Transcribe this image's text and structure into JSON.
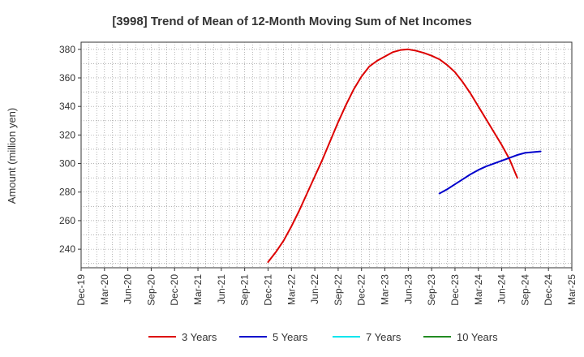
{
  "chart_data": {
    "type": "line",
    "title": "[3998]  Trend of Mean of 12-Month Moving Sum of Net Incomes",
    "ylabel": "Amount (million yen)",
    "xlabel": "",
    "x_ticks": [
      "Dec-19",
      "Mar-20",
      "Jun-20",
      "Sep-20",
      "Dec-20",
      "Mar-21",
      "Jun-21",
      "Sep-21",
      "Dec-21",
      "Mar-22",
      "Jun-22",
      "Sep-22",
      "Dec-22",
      "Mar-23",
      "Jun-23",
      "Sep-23",
      "Dec-23",
      "Mar-24",
      "Jun-24",
      "Sep-24",
      "Dec-24",
      "Mar-25"
    ],
    "y_ticks": [
      240,
      260,
      280,
      300,
      320,
      340,
      360,
      380
    ],
    "ylim": [
      227,
      385
    ],
    "grid": true,
    "legend_position": "bottom",
    "series": [
      {
        "name": "3 Years",
        "color": "#dd0000",
        "points": [
          [
            "Dec-21",
            231
          ],
          [
            "Jan-22",
            238
          ],
          [
            "Feb-22",
            246
          ],
          [
            "Mar-22",
            256
          ],
          [
            "Apr-22",
            267
          ],
          [
            "May-22",
            279
          ],
          [
            "Jun-22",
            291
          ],
          [
            "Jul-22",
            303
          ],
          [
            "Aug-22",
            316
          ],
          [
            "Sep-22",
            329
          ],
          [
            "Oct-22",
            341
          ],
          [
            "Nov-22",
            352
          ],
          [
            "Dec-22",
            361
          ],
          [
            "Jan-23",
            368
          ],
          [
            "Feb-23",
            372
          ],
          [
            "Mar-23",
            375
          ],
          [
            "Apr-23",
            378
          ],
          [
            "May-23",
            379.5
          ],
          [
            "Jun-23",
            380
          ],
          [
            "Jul-23",
            379
          ],
          [
            "Aug-23",
            377.5
          ],
          [
            "Sep-23",
            375.5
          ],
          [
            "Oct-23",
            373
          ],
          [
            "Nov-23",
            369
          ],
          [
            "Dec-23",
            364
          ],
          [
            "Jan-24",
            357
          ],
          [
            "Feb-24",
            349
          ],
          [
            "Mar-24",
            340
          ],
          [
            "Apr-24",
            331
          ],
          [
            "May-24",
            322
          ],
          [
            "Jun-24",
            313
          ],
          [
            "Jul-24",
            303
          ],
          [
            "Aug-24",
            290
          ]
        ]
      },
      {
        "name": "5 Years",
        "color": "#0000cc",
        "points": [
          [
            "Oct-23",
            279
          ],
          [
            "Nov-23",
            282
          ],
          [
            "Dec-23",
            285.5
          ],
          [
            "Jan-24",
            289
          ],
          [
            "Feb-24",
            292.5
          ],
          [
            "Mar-24",
            295.5
          ],
          [
            "Apr-24",
            298
          ],
          [
            "May-24",
            300
          ],
          [
            "Jun-24",
            302
          ],
          [
            "Jul-24",
            304
          ],
          [
            "Aug-24",
            306
          ],
          [
            "Sep-24",
            307.5
          ],
          [
            "Oct-24",
            308
          ],
          [
            "Nov-24",
            308.5
          ]
        ]
      },
      {
        "name": "7 Years",
        "color": "#00e5ee",
        "points": []
      },
      {
        "name": "10 Years",
        "color": "#228b22",
        "points": []
      }
    ]
  }
}
